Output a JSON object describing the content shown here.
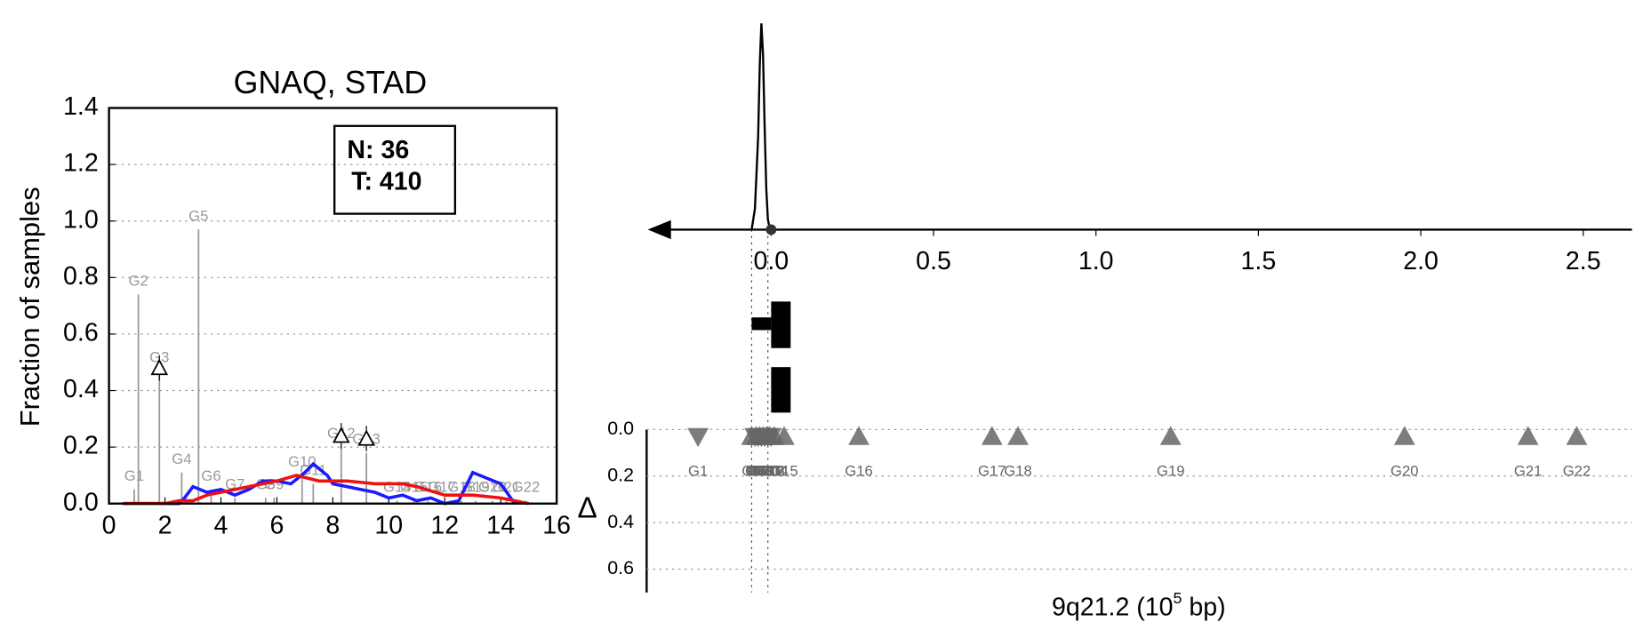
{
  "chart_data": [
    {
      "type": "line",
      "title": "GNAQ, STAD",
      "ylabel": "Fraction of samples",
      "xlim": [
        0,
        16
      ],
      "xticks": [
        0,
        2,
        4,
        6,
        8,
        10,
        12,
        14,
        16
      ],
      "ylim": [
        0,
        1.4
      ],
      "yticks": [
        {
          "value": 0,
          "label": "0.0"
        },
        0.2,
        0.4,
        0.6,
        0.8,
        {
          "value": 1,
          "label": "1.0"
        },
        1.2,
        1.4
      ],
      "grid": true,
      "annotation": [
        "N: 36",
        "T: 410"
      ],
      "series": [
        {
          "color": "#1a1aff",
          "x": [
            0.5,
            1,
            2,
            2.5,
            2.7,
            3,
            3.5,
            4,
            4.5,
            5,
            5.5,
            6,
            6.5,
            7,
            7.3,
            7.8,
            8,
            8.5,
            9,
            9.5,
            10,
            10.5,
            11,
            11.5,
            12,
            12.5,
            13,
            13.5,
            14,
            14.5
          ],
          "values": [
            0,
            0,
            0,
            0,
            0.02,
            0.06,
            0.04,
            0.05,
            0.03,
            0.05,
            0.08,
            0.08,
            0.07,
            0.11,
            0.14,
            0.1,
            0.07,
            0.06,
            0.05,
            0.04,
            0.02,
            0.03,
            0.01,
            0.02,
            0,
            0.01,
            0.11,
            0.09,
            0.07,
            0
          ]
        },
        {
          "color": "#ee1111",
          "x": [
            0.5,
            1,
            2,
            2.5,
            3,
            3.5,
            4,
            5,
            6,
            6.7,
            7.5,
            8.5,
            9.5,
            10.5,
            11,
            12,
            13,
            14,
            15
          ],
          "values": [
            0,
            0,
            0,
            0.01,
            0.01,
            0.03,
            0.04,
            0.06,
            0.08,
            0.1,
            0.08,
            0.08,
            0.07,
            0.07,
            0.06,
            0.03,
            0.03,
            0.02,
            0
          ]
        }
      ],
      "genes": {
        "color": "#999999",
        "labels": [
          "G1",
          "G2",
          "G3",
          "G4",
          "G5",
          "G6",
          "G7",
          "G8",
          "G9",
          "G10",
          "G11",
          "G12",
          "G13",
          "G14",
          "G15",
          "G16",
          "G17",
          "G18",
          "G19",
          "G20",
          "G21",
          "G22"
        ],
        "x": [
          0.9,
          1.05,
          1.8,
          2.6,
          3.2,
          3.65,
          4.5,
          5.6,
          5.9,
          6.9,
          7.3,
          8.3,
          9.2,
          10.3,
          10.9,
          11.4,
          11.9,
          12.6,
          13.1,
          13.7,
          14.2,
          14.9
        ],
        "values": [
          0.05,
          0.74,
          0.47,
          0.11,
          0.97,
          0.05,
          0.02,
          0.02,
          0.02,
          0.1,
          0.07,
          0.2,
          0.18,
          0.01,
          0.01,
          0.01,
          0.01,
          0.01,
          0.01,
          0.01,
          0.01,
          0.01
        ]
      },
      "deltas": {
        "x": [
          1.8,
          8.3,
          9.2
        ],
        "values": [
          0.48,
          0.24,
          0.23
        ]
      }
    },
    {
      "type": "density",
      "xlim": [
        -0.38,
        2.65
      ],
      "xticks": [
        {
          "value": 0,
          "label": "0.0"
        },
        0.5,
        {
          "value": 1,
          "label": "1.0"
        },
        1.5,
        {
          "value": 2,
          "label": "2.0"
        },
        2.5
      ],
      "ylim": [
        0,
        1
      ],
      "x": [
        -0.06,
        -0.05,
        -0.04,
        -0.035,
        -0.03,
        -0.025,
        -0.02,
        -0.015,
        -0.01,
        -0.005,
        0,
        0.003
      ],
      "values": [
        0,
        0.1,
        0.45,
        0.8,
        1,
        0.85,
        0.5,
        0.2,
        0.05,
        0.01,
        0,
        0
      ],
      "guides": [
        -0.06,
        -0.01
      ],
      "segments": [
        [
          [
            -0.06,
            0
          ],
          [
            0,
            0.06
          ]
        ],
        [
          [
            0,
            0.06
          ]
        ]
      ]
    },
    {
      "type": "scatter",
      "xlabel": [
        "9q21.2 (10",
        "5",
        " bp)"
      ],
      "ylabel": "Δ",
      "xlim": [
        -0.38,
        2.65
      ],
      "ylim": [
        0,
        0.7
      ],
      "yticks": [
        {
          "value": 0,
          "label": "0.0"
        },
        0.2,
        0.4,
        0.6
      ],
      "grid": true,
      "color": "#666666",
      "labels": [
        "G1",
        "G2",
        "G3",
        "G4",
        "G5",
        "G6",
        "G7",
        "G8",
        "G9",
        "G10",
        "G11",
        "G12",
        "G13",
        "G14",
        "G15",
        "G16",
        "G17",
        "G18",
        "G19",
        "G20",
        "G21",
        "G22"
      ],
      "x": [
        -0.225,
        -0.06,
        -0.05,
        -0.045,
        -0.04,
        -0.035,
        -0.03,
        -0.025,
        -0.02,
        -0.015,
        -0.01,
        -0.005,
        0,
        0.01,
        0.04,
        0.27,
        0.68,
        0.76,
        1.23,
        1.95,
        2.33,
        2.48
      ],
      "values": [
        0.03,
        0.03,
        0.03,
        0.03,
        0.03,
        0.03,
        0.03,
        0.03,
        0.03,
        0.03,
        0.03,
        0.03,
        0.03,
        0.03,
        0.03,
        0.03,
        0.03,
        0.03,
        0.03,
        0.03,
        0.03,
        0.03
      ],
      "directions": [
        "down",
        "up",
        "down",
        "up",
        "down",
        "up",
        "down",
        "up",
        "down",
        "up",
        "down",
        "up",
        "down",
        "up",
        "up",
        "up",
        "up",
        "up",
        "up",
        "up",
        "up",
        "up"
      ]
    }
  ]
}
